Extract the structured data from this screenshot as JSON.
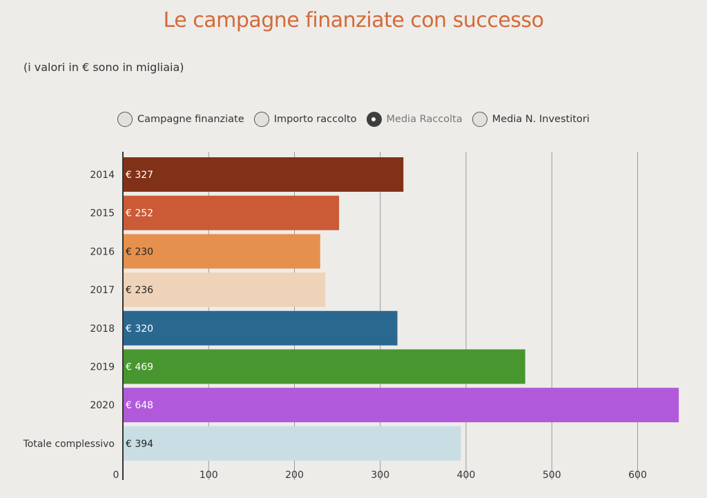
{
  "title": "Le campagne finanziate con successo",
  "subtitle": "(i valori in € sono in migliaia)",
  "legend": {
    "items": [
      {
        "label": "Campagne finanziate",
        "selected": false
      },
      {
        "label": "Importo raccolto",
        "selected": false
      },
      {
        "label": "Media Raccolta",
        "selected": true
      },
      {
        "label": "Media N. Investitori",
        "selected": false
      }
    ]
  },
  "chart_data": {
    "type": "bar",
    "orientation": "horizontal",
    "title": "Le campagne finanziate con successo",
    "subtitle": "(i valori in € sono in migliaia)",
    "categories": [
      "2014",
      "2015",
      "2016",
      "2017",
      "2018",
      "2019",
      "2020",
      "Totale complessivo"
    ],
    "values": [
      327,
      252,
      230,
      236,
      320,
      469,
      648,
      394
    ],
    "value_labels": [
      "€ 327",
      "€ 252",
      "€ 230",
      "€ 236",
      "€ 320",
      "€ 469",
      "€ 648",
      "€ 394"
    ],
    "colors": [
      "#813117",
      "#cb5a36",
      "#e5914d",
      "#efd3b8",
      "#2a6890",
      "#47962f",
      "#b05adb",
      "#c8dee4"
    ],
    "label_colors": [
      "#ffffff",
      "#ffffff",
      "#222222",
      "#222222",
      "#ffffff",
      "#ffffff",
      "#ffffff",
      "#222222"
    ],
    "xlim": [
      0,
      650
    ],
    "xticks": [
      0,
      100,
      200,
      300,
      400,
      500,
      600
    ],
    "grid": true,
    "legend_position": "top"
  }
}
